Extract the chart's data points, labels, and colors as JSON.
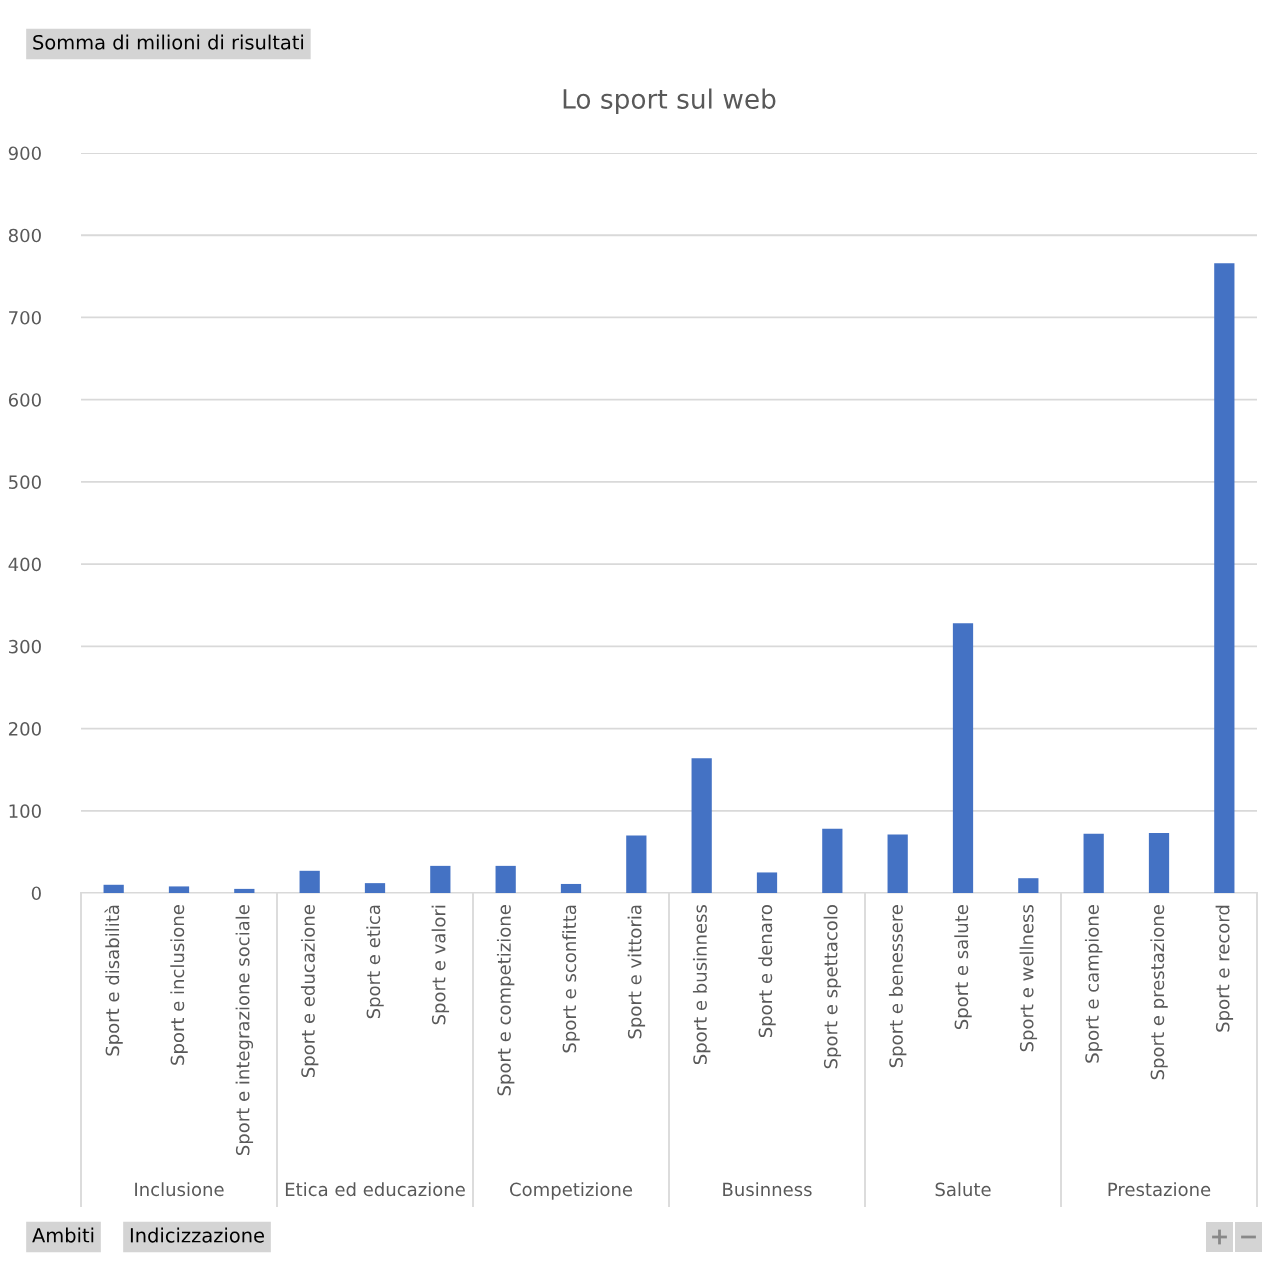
{
  "chart_data": {
    "type": "bar",
    "title": "Lo sport sul web",
    "categories": [
      "Sport e disabilità",
      "Sport e inclusione",
      "Sport e integrazione sociale",
      "Sport e educazione",
      "Sport e etica",
      "Sport e valori",
      "Sport e competizione",
      "Sport e sconfitta",
      "Sport e vittoria",
      "Sport e businness",
      "Sport e denaro",
      "Sport e spettacolo",
      "Sport e benessere",
      "Sport e salute",
      "Sport e wellness",
      "Sport e campione",
      "Sport e prestazione",
      "Sport e record"
    ],
    "values": [
      10,
      8,
      5,
      27,
      12,
      33,
      33,
      11,
      70,
      164,
      25,
      78,
      71,
      328,
      18,
      72,
      73,
      766
    ],
    "color": "#4472c4",
    "ylim": [
      0,
      900
    ],
    "yticks": [
      0,
      100,
      200,
      300,
      400,
      500,
      600,
      700,
      800,
      900
    ],
    "grid": "y",
    "annotations": [
      "Somma di milioni di risultati",
      "Ambiti",
      "Indicizzazione",
      "Inclusione",
      "Etica ed educazione",
      "Competizione",
      "Businness",
      "Salute",
      "Prestazione"
    ]
  }
}
